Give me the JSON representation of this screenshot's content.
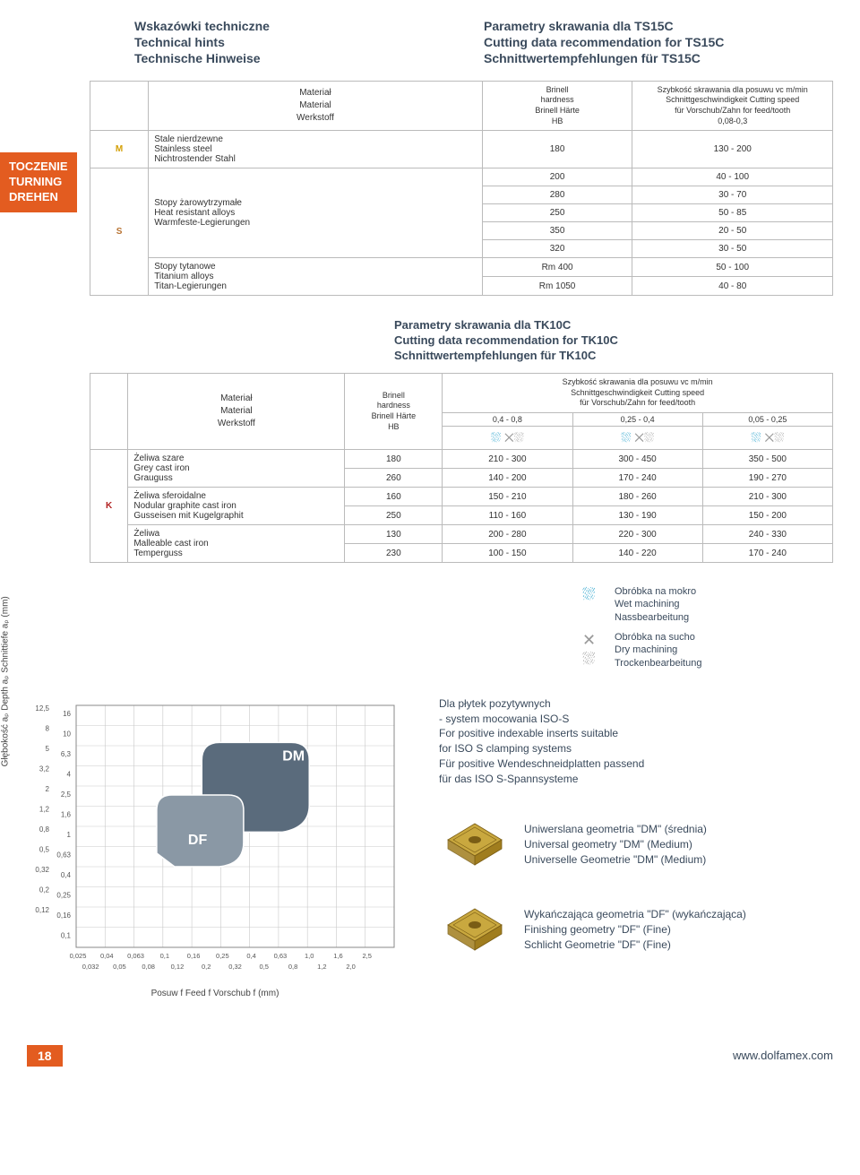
{
  "header": {
    "left": [
      "Wskazówki techniczne",
      "Technical hints",
      "Technische Hinweise"
    ],
    "right": [
      "Parametry skrawania dla TS15C",
      "Cutting data recommendation for TS15C",
      "Schnittwertempfehlungen für TS15C"
    ]
  },
  "sidebar": {
    "lines": [
      "TOCZENIE",
      "TURNING",
      "DREHEN"
    ]
  },
  "table1": {
    "head": {
      "material": [
        "Materiał",
        "Material",
        "Werkstoff"
      ],
      "brinell": [
        "Brinell",
        "hardness",
        "Brinell Härte",
        "HB"
      ],
      "speed": [
        "Szybkość skrawania dla posuwu vc m/min",
        "Schnittgeschwindigkeit Cutting speed",
        "für Vorschub/Zahn for feed/tooth",
        "0,08-0,3"
      ]
    },
    "rows": [
      {
        "iso": "M",
        "iso_class": "m-cell",
        "material": [
          "Stale nierdzewne",
          "Stainless steel",
          "Nichtrostender Stahl"
        ],
        "data": [
          [
            "180",
            "130 - 200"
          ]
        ]
      },
      {
        "iso": "S",
        "iso_class": "s-cell",
        "material": [
          "Stopy żarowytrzymałe",
          "Heat resistant alloys",
          "Warmfeste-Legierungen"
        ],
        "data": [
          [
            "200",
            "40 - 100"
          ],
          [
            "280",
            "30 - 70"
          ],
          [
            "250",
            "50 - 85"
          ],
          [
            "350",
            "20 - 50"
          ],
          [
            "320",
            "30 - 50"
          ]
        ]
      },
      {
        "iso": "",
        "iso_class": "",
        "material": [
          "Stopy tytanowe",
          "Titanium alloys",
          "Titan-Legierungen"
        ],
        "data": [
          [
            "Rm 400",
            "50 - 100"
          ],
          [
            "Rm 1050",
            "40 - 80"
          ]
        ]
      }
    ]
  },
  "section2_title": [
    "Parametry skrawania dla TK10C",
    "Cutting data recommendation for TK10C",
    "Schnittwertempfehlungen für TK10C"
  ],
  "table2": {
    "head": {
      "material": [
        "Materiał",
        "Material",
        "Werkstoff"
      ],
      "brinell": [
        "Brinell",
        "hardness",
        "Brinell Härte",
        "HB"
      ],
      "speed": [
        "Szybkość skrawania dla posuwu vc m/min",
        "Schnittgeschwindigkeit Cutting speed",
        "für Vorschub/Zahn for feed/tooth"
      ],
      "feed_ranges": [
        "0,4 - 0,8",
        "0,25 - 0,4",
        "0,05 - 0,25"
      ]
    },
    "rows_iso": "K",
    "material_groups": [
      {
        "mat": [
          "Żeliwa szare",
          "Grey cast iron",
          "Grauguss"
        ],
        "data": [
          [
            "180",
            "210 - 300",
            "300 - 450",
            "350 - 500"
          ],
          [
            "260",
            "140 - 200",
            "170 - 240",
            "190 - 270"
          ]
        ]
      },
      {
        "mat": [
          "Żeliwa sferoidalne",
          "Nodular graphite cast iron",
          "Gusseisen mit Kugelgraphit"
        ],
        "data": [
          [
            "160",
            "150 - 210",
            "180 - 260",
            "210 - 300"
          ],
          [
            "250",
            "110 - 160",
            "130 - 190",
            "150 - 200"
          ]
        ]
      },
      {
        "mat": [
          "Żeliwa",
          "Malleable cast iron",
          "Temperguss"
        ],
        "data": [
          [
            "130",
            "200 - 280",
            "220 - 300",
            "240 - 330"
          ],
          [
            "230",
            "100 - 150",
            "140 - 220",
            "170 - 240"
          ]
        ]
      }
    ]
  },
  "legend": {
    "wet": [
      "Obróbka na mokro",
      "Wet machining",
      "Nassbearbeitung"
    ],
    "dry": [
      "Obróbka na sucho",
      "Dry machining",
      "Trockenbearbeitung"
    ]
  },
  "chart": {
    "y_label": "Głębokość aₚ Depth aₚ Schnittiefe aₚ (mm)",
    "x_label": "Posuw f  Feed f  Vorschub f (mm)",
    "y_ticks_left": [
      "12,5",
      "8",
      "5",
      "3,2",
      "2",
      "1,2",
      "0,8",
      "0,5",
      "0,32",
      "0,2",
      "0,12"
    ],
    "y_ticks_right": [
      "16",
      "10",
      "6,3",
      "4",
      "2,5",
      "1,6",
      "1",
      "0,63",
      "0,4",
      "0,25",
      "0,16",
      "0,1"
    ],
    "x_ticks_top": [
      "0,025",
      "0,04",
      "0,063",
      "0,1",
      "0,16",
      "0,25",
      "0,4",
      "0,63",
      "1,0",
      "1,6",
      "2,5"
    ],
    "x_ticks_bot": [
      "0,032",
      "0,05",
      "0,08",
      "0,12",
      "0,2",
      "0,32",
      "0,5",
      "0,8",
      "1,2",
      "2,0"
    ],
    "dm_label": "DM",
    "df_label": "DF",
    "dm_color": "#5a6b7c",
    "df_color": "#8a98a5",
    "grid_color": "#c9c9c9"
  },
  "desc": {
    "positive": [
      "Dla płytek pozytywnych",
      "- system mocowania ISO-S",
      "For positive indexable inserts suitable",
      "for ISO S clamping systems",
      "Für positive Wendeschneidplatten passend",
      "für das ISO S-Spannsysteme"
    ],
    "dm": [
      "Uniwerslana geometria \"DM\" (średnia)",
      "Universal geometry \"DM\" (Medium)",
      "Universelle Geometrie \"DM\" (Medium)"
    ],
    "df": [
      "Wykańczająca geometria \"DF\" (wykańczająca)",
      "Finishing geometry \"DF\" (Fine)",
      "Schlicht Geometrie \"DF\" (Fine)"
    ]
  },
  "insert_colors": {
    "face": "#c9a83f",
    "side": "#a07d1e",
    "edge": "#7a5d15"
  },
  "footer": {
    "page": "18",
    "url": "www.dolfamex.com"
  }
}
